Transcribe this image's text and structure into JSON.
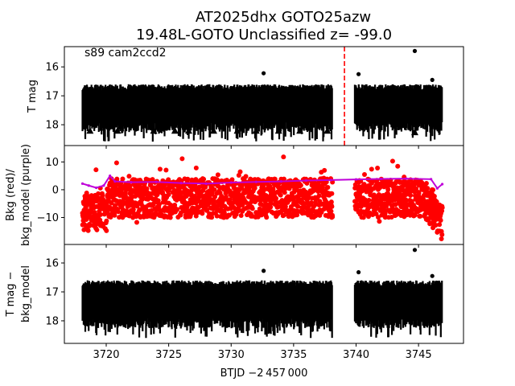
{
  "chart_data": {
    "type": "scatter",
    "title_line1": "AT2025dhx  GOTO25azw",
    "title_line2": "19.48L-GOTO Unclassified z= -99.0",
    "xlabel": "BTJD −2 457 000",
    "xlim": [
      3716.65,
      3748.6
    ],
    "xticks": [
      3720,
      3725,
      3730,
      3735,
      3740,
      3745
    ],
    "xtick_labels": [
      "3720",
      "3725",
      "3730",
      "3735",
      "3740",
      "3745"
    ],
    "segments": [
      [
        3718.1,
        3738.1
      ],
      [
        3739.9,
        3746.9
      ]
    ],
    "marker_line_x": 3739.07,
    "panels": [
      {
        "name": "tmag",
        "ylabel": [
          "T mag"
        ],
        "annotation": "s89 cam2ccd2",
        "ylim": [
          18.72,
          15.3
        ],
        "yticks": [
          16,
          17,
          18
        ],
        "ytick_labels": [
          "16",
          "17",
          "18"
        ],
        "band": {
          "center": 17.35,
          "half_width": 0.55,
          "tail": 0.35
        },
        "outliers": [
          [
            3732.6,
            16.22
          ],
          [
            3740.2,
            16.25
          ],
          [
            3744.7,
            15.45
          ],
          [
            3746.1,
            16.45
          ]
        ],
        "upper_limits": [
          [
            3718.7,
            18.2
          ],
          [
            3720.9,
            18.2
          ],
          [
            3723.8,
            18.2
          ],
          [
            3725.5,
            18.2
          ],
          [
            3726.6,
            18.2
          ],
          [
            3728.6,
            18.2
          ],
          [
            3730.5,
            18.2
          ],
          [
            3732.0,
            18.2
          ],
          [
            3733.8,
            18.2
          ],
          [
            3735.5,
            18.2
          ],
          [
            3737.7,
            18.2
          ],
          [
            3744.7,
            18.25
          ]
        ]
      },
      {
        "name": "bkg",
        "ylabel": [
          "Bkg (red)/",
          "bkg_model (purple)"
        ],
        "ylim": [
          -19.7,
          15.9
        ],
        "yticks": [
          10,
          0,
          -10
        ],
        "ytick_labels": [
          "10",
          "0",
          "−10"
        ],
        "model": [
          [
            3718.1,
            2.2
          ],
          [
            3718.6,
            1.5
          ],
          [
            3719.2,
            0.7
          ],
          [
            3719.8,
            1.5
          ],
          [
            3720.3,
            5.0
          ],
          [
            3720.7,
            3.0
          ],
          [
            3722,
            2.7
          ],
          [
            3724,
            2.8
          ],
          [
            3726,
            2.4
          ],
          [
            3728,
            2.2
          ],
          [
            3730,
            2.6
          ],
          [
            3732,
            2.8
          ],
          [
            3734,
            3.0
          ],
          [
            3736,
            3.3
          ],
          [
            3738,
            3.5
          ],
          [
            3740,
            3.7
          ],
          [
            3742,
            3.9
          ],
          [
            3744,
            4.0
          ],
          [
            3746,
            3.8
          ],
          [
            3746.5,
            0.5
          ],
          [
            3746.9,
            2.0
          ]
        ],
        "red_color": "#ff0000",
        "model_color": "#bf00d9"
      },
      {
        "name": "tmag_minus_model",
        "ylabel": [
          "T mag −",
          "bkg_model"
        ],
        "ylim": [
          18.78,
          15.36
        ],
        "yticks": [
          16,
          17,
          18
        ],
        "ytick_labels": [
          "16",
          "17",
          "18"
        ],
        "band": {
          "center": 17.35,
          "half_width": 0.55,
          "tail": 0.35
        },
        "outliers": [
          [
            3732.6,
            16.27
          ],
          [
            3740.2,
            16.32
          ],
          [
            3744.7,
            15.55
          ],
          [
            3746.1,
            16.45
          ]
        ]
      }
    ]
  }
}
